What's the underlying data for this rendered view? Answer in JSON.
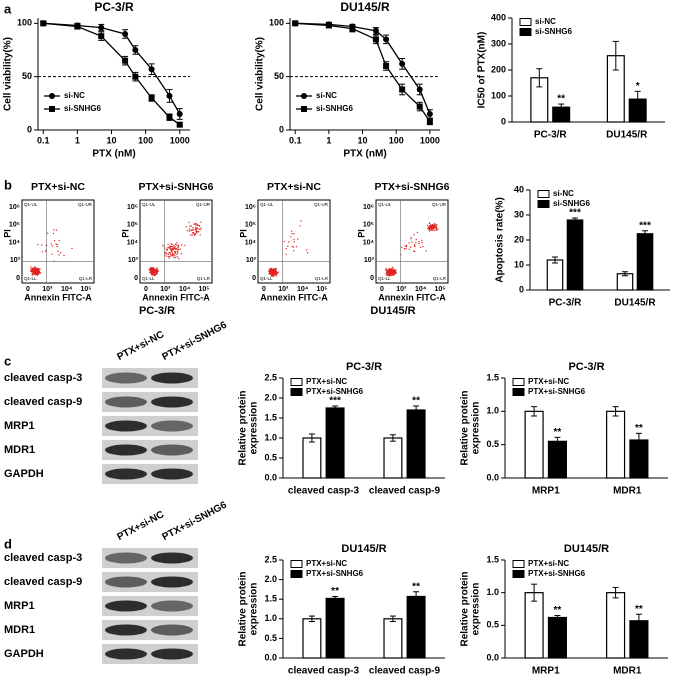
{
  "panel_labels": [
    "a",
    "b",
    "c",
    "d"
  ],
  "chart_data": [
    {
      "type": "line",
      "title": "PC-3/R",
      "x_label": "PTX (nM)",
      "y_label": "Cell viability(%)",
      "xscale": "log",
      "x": [
        0.1,
        1,
        5,
        25,
        50,
        150,
        500,
        1000
      ],
      "xlim": [
        0.07,
        2000
      ],
      "xticks": [
        0.1,
        1,
        10,
        100,
        1000
      ],
      "ylim": [
        0,
        105
      ],
      "yticks": [
        0,
        50,
        100
      ],
      "reference_line": 50,
      "legend": "lower left",
      "series": [
        {
          "name": "si-NC",
          "color": "#000000",
          "marker": "circle",
          "values": [
            100,
            98,
            96,
            90,
            75,
            57,
            32,
            15
          ],
          "errors": [
            2,
            2,
            3,
            4,
            4,
            5,
            6,
            5
          ]
        },
        {
          "name": "si-SNHG6",
          "color": "#000000",
          "marker": "square",
          "values": [
            100,
            97,
            88,
            65,
            50,
            30,
            12,
            5
          ],
          "errors": [
            2,
            2,
            4,
            4,
            4,
            3,
            3,
            2
          ]
        }
      ]
    },
    {
      "type": "line",
      "title": "DU145/R",
      "x_label": "PTX (nM)",
      "y_label": "Cell viability(%)",
      "xscale": "log",
      "x": [
        0.1,
        1,
        5,
        25,
        50,
        150,
        500,
        1000
      ],
      "xlim": [
        0.07,
        2000
      ],
      "xticks": [
        0.1,
        1,
        10,
        100,
        1000
      ],
      "ylim": [
        0,
        105
      ],
      "yticks": [
        0,
        50,
        100
      ],
      "reference_line": 50,
      "legend": "lower left",
      "series": [
        {
          "name": "si-NC",
          "color": "#000000",
          "marker": "circle",
          "values": [
            100,
            99,
            97,
            93,
            85,
            62,
            38,
            15
          ],
          "errors": [
            2,
            2,
            2,
            3,
            4,
            5,
            5,
            4
          ]
        },
        {
          "name": "si-SNHG6",
          "color": "#000000",
          "marker": "square",
          "values": [
            100,
            98,
            95,
            85,
            60,
            38,
            22,
            8
          ],
          "errors": [
            2,
            2,
            3,
            4,
            4,
            5,
            4,
            3
          ]
        }
      ]
    },
    {
      "type": "bar",
      "y_label": "IC50 of PTX(nM)",
      "categories": [
        "PC-3/R",
        "DU145/R"
      ],
      "ylim": [
        0,
        400
      ],
      "yticks": [
        0,
        100,
        200,
        300,
        400
      ],
      "legend": "upper left",
      "series": [
        {
          "name": "si-NC",
          "color": "#ffffff",
          "values": [
            170,
            255
          ],
          "errors": [
            35,
            55
          ]
        },
        {
          "name": "si-SNHG6",
          "color": "#000000",
          "values": [
            57,
            88
          ],
          "errors": [
            12,
            30
          ],
          "significance": [
            "**",
            "*"
          ]
        }
      ]
    },
    {
      "type": "bar",
      "y_label": "Apoptosis rate(%)",
      "categories": [
        "PC-3/R",
        "DU145/R"
      ],
      "ylim": [
        0,
        40
      ],
      "yticks": [
        0,
        10,
        20,
        30,
        40
      ],
      "legend": "upper left",
      "series": [
        {
          "name": "si-NC",
          "color": "#ffffff",
          "values": [
            12,
            6.5
          ],
          "errors": [
            1.2,
            0.8
          ]
        },
        {
          "name": "si-SNHG6",
          "color": "#000000",
          "values": [
            28,
            22.5
          ],
          "errors": [
            0.8,
            1.2
          ],
          "significance": [
            "***",
            "***"
          ]
        }
      ]
    },
    {
      "type": "bar",
      "title": "PC-3/R",
      "y_label": [
        "Relative protein",
        "expression"
      ],
      "categories": [
        "cleaved casp-3",
        "cleaved casp-9"
      ],
      "ylim": [
        0,
        2.5
      ],
      "yticks": [
        {
          "value": 0,
          "label": "0.0"
        },
        0.5,
        {
          "value": 1,
          "label": "1.0"
        },
        1.5,
        {
          "value": 2,
          "label": "2.0"
        },
        2.5
      ],
      "legend": "upper left",
      "series": [
        {
          "name": "PTX+si-NC",
          "color": "#ffffff",
          "values": [
            1.0,
            1.0
          ],
          "errors": [
            0.1,
            0.08
          ]
        },
        {
          "name": "PTX+si-SNHG6",
          "color": "#000000",
          "values": [
            1.75,
            1.7
          ],
          "errors": [
            0.05,
            0.1
          ],
          "significance": [
            "***",
            "**"
          ]
        }
      ]
    },
    {
      "type": "bar",
      "title": "PC-3/R",
      "y_label": [
        "Relative protein",
        "expression"
      ],
      "categories": [
        "MRP1",
        "MDR1"
      ],
      "ylim": [
        0,
        1.5
      ],
      "yticks": [
        {
          "value": 0,
          "label": "0.0"
        },
        0.5,
        {
          "value": 1,
          "label": "1.0"
        },
        1.5
      ],
      "legend": "upper left",
      "series": [
        {
          "name": "PTX+si-NC",
          "color": "#ffffff",
          "values": [
            1.0,
            1.0
          ],
          "errors": [
            0.07,
            0.07
          ]
        },
        {
          "name": "PTX+si-SNHG6",
          "color": "#000000",
          "values": [
            0.55,
            0.57
          ],
          "errors": [
            0.06,
            0.1
          ],
          "significance": [
            "**",
            "**"
          ]
        }
      ]
    },
    {
      "type": "bar",
      "title": "DU145/R",
      "y_label": [
        "Relative protein",
        "expression"
      ],
      "categories": [
        "cleaved casp-3",
        "cleaved casp-9"
      ],
      "ylim": [
        0,
        2.5
      ],
      "yticks": [
        {
          "value": 0,
          "label": "0.0"
        },
        0.5,
        {
          "value": 1,
          "label": "1.0"
        },
        1.5,
        {
          "value": 2,
          "label": "2.0"
        },
        2.5
      ],
      "legend": "upper left",
      "series": [
        {
          "name": "PTX+si-NC",
          "color": "#ffffff",
          "values": [
            1.0,
            1.0
          ],
          "errors": [
            0.07,
            0.07
          ]
        },
        {
          "name": "PTX+si-SNHG6",
          "color": "#000000",
          "values": [
            1.52,
            1.57
          ],
          "errors": [
            0.05,
            0.12
          ],
          "significance": [
            "**",
            "**"
          ]
        }
      ]
    },
    {
      "type": "bar",
      "title": "DU145/R",
      "y_label": [
        "Relative protein",
        "expression"
      ],
      "categories": [
        "MRP1",
        "MDR1"
      ],
      "ylim": [
        0,
        1.5
      ],
      "yticks": [
        {
          "value": 0,
          "label": "0.0"
        },
        0.5,
        {
          "value": 1,
          "label": "1.0"
        },
        1.5
      ],
      "legend": "upper left",
      "series": [
        {
          "name": "PTX+si-NC",
          "color": "#ffffff",
          "values": [
            1.0,
            1.0
          ],
          "errors": [
            0.13,
            0.08
          ]
        },
        {
          "name": "PTX+si-SNHG6",
          "color": "#000000",
          "values": [
            0.62,
            0.57
          ],
          "errors": [
            0.03,
            0.1
          ],
          "significance": [
            "**",
            "**"
          ]
        }
      ]
    }
  ],
  "flow": {
    "plots": [
      "PTX+si-NC",
      "PTX+si-SNHG6",
      "PTX+si-NC",
      "PTX+si-SNHG6"
    ],
    "quadrants": [
      "Q1-UL",
      "Q1-UR",
      "Q1-LL",
      "Q1-LR"
    ],
    "x_ticks": [
      "0",
      "10³",
      "10⁴",
      "10⁵"
    ],
    "y_ticks": [
      "0",
      "10³",
      "10⁴",
      "10⁵",
      "10⁶"
    ],
    "x_label": "Annexin FITC-A",
    "y_label": "PI",
    "groups": [
      "PC-3/R",
      "DU145/R"
    ]
  },
  "blots": [
    {
      "lanes": [
        "PTX+si-NC",
        "PTX+si-SNHG6"
      ],
      "rows": [
        "cleaved casp-3",
        "cleaved casp-9",
        "MRP1",
        "MDR1",
        "GAPDH"
      ]
    },
    {
      "lanes": [
        "PTX+si-NC",
        "PTX+si-SNHG6"
      ],
      "rows": [
        "cleaved casp-3",
        "cleaved casp-9",
        "MRP1",
        "MDR1",
        "GAPDH"
      ]
    }
  ]
}
